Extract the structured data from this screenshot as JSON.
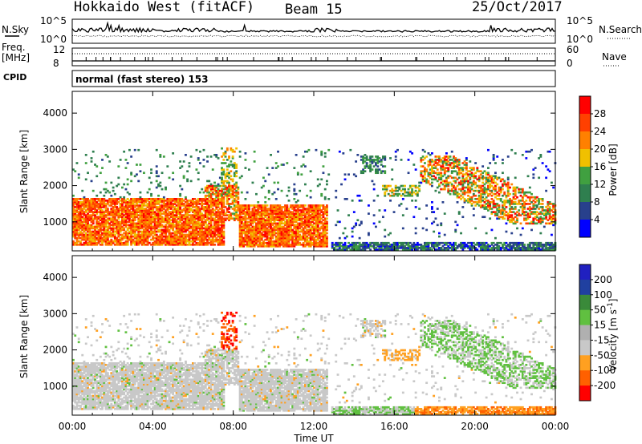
{
  "header": {
    "radar": "Hokkaido West (fitACF)",
    "beam": "Beam 15",
    "date": "25/Oct/2017"
  },
  "strip_labels": {
    "nsky": "N.Sky",
    "freq_line1": "Freq.",
    "freq_line2": "[MHz]",
    "cpid": "CPID",
    "nsearch": "N.Search",
    "nave": "Nave",
    "noise_top": "10^5",
    "noise_bottom": "10^0",
    "noise_top_r": "10^5",
    "noise_bottom_r": "10^0",
    "freq_top": "12",
    "freq_bottom": "8",
    "nave_top": "60",
    "nave_bottom": "0",
    "mode": "normal (fast stereo) 153"
  },
  "colors": {
    "power": [
      "#0000ff",
      "#28408c",
      "#2f7f4f",
      "#40a040",
      "#f0c000",
      "#ff8000",
      "#ff4000",
      "#ff0000"
    ],
    "velocity": [
      "#ff0000",
      "#ff6000",
      "#ffa020",
      "#c8c8c8",
      "#b0b0b0",
      "#60c040",
      "#3a8a3a",
      "#2040a0",
      "#2020c0"
    ]
  },
  "chart_data": [
    {
      "type": "heatmap",
      "title": "Power",
      "ylabel": "Slant Range [km]",
      "xlabel": "",
      "x_ticks": [
        "00:00",
        "04:00",
        "08:00",
        "12:00",
        "16:00",
        "20:00",
        "00:00"
      ],
      "y_ticks": [
        "1000",
        "2000",
        "3000",
        "4000"
      ],
      "ylim": [
        200,
        4600
      ],
      "colorbar_label": "Power [dB]",
      "colorbar_ticks": [
        "4",
        "8",
        "12",
        "16",
        "20",
        "24",
        "28"
      ]
    },
    {
      "type": "heatmap",
      "title": "Velocity",
      "ylabel": "Slant Range [km]",
      "xlabel": "Time UT",
      "x_ticks": [
        "00:00",
        "04:00",
        "08:00",
        "12:00",
        "16:00",
        "20:00",
        "00:00"
      ],
      "y_ticks": [
        "1000",
        "2000",
        "3000",
        "4000"
      ],
      "ylim": [
        200,
        4600
      ],
      "colorbar_label": "Velocity [m s^-1]",
      "colorbar_ticks": [
        "200",
        "100",
        "50",
        "15",
        "-15",
        "-50",
        "-100",
        "-200"
      ]
    }
  ]
}
